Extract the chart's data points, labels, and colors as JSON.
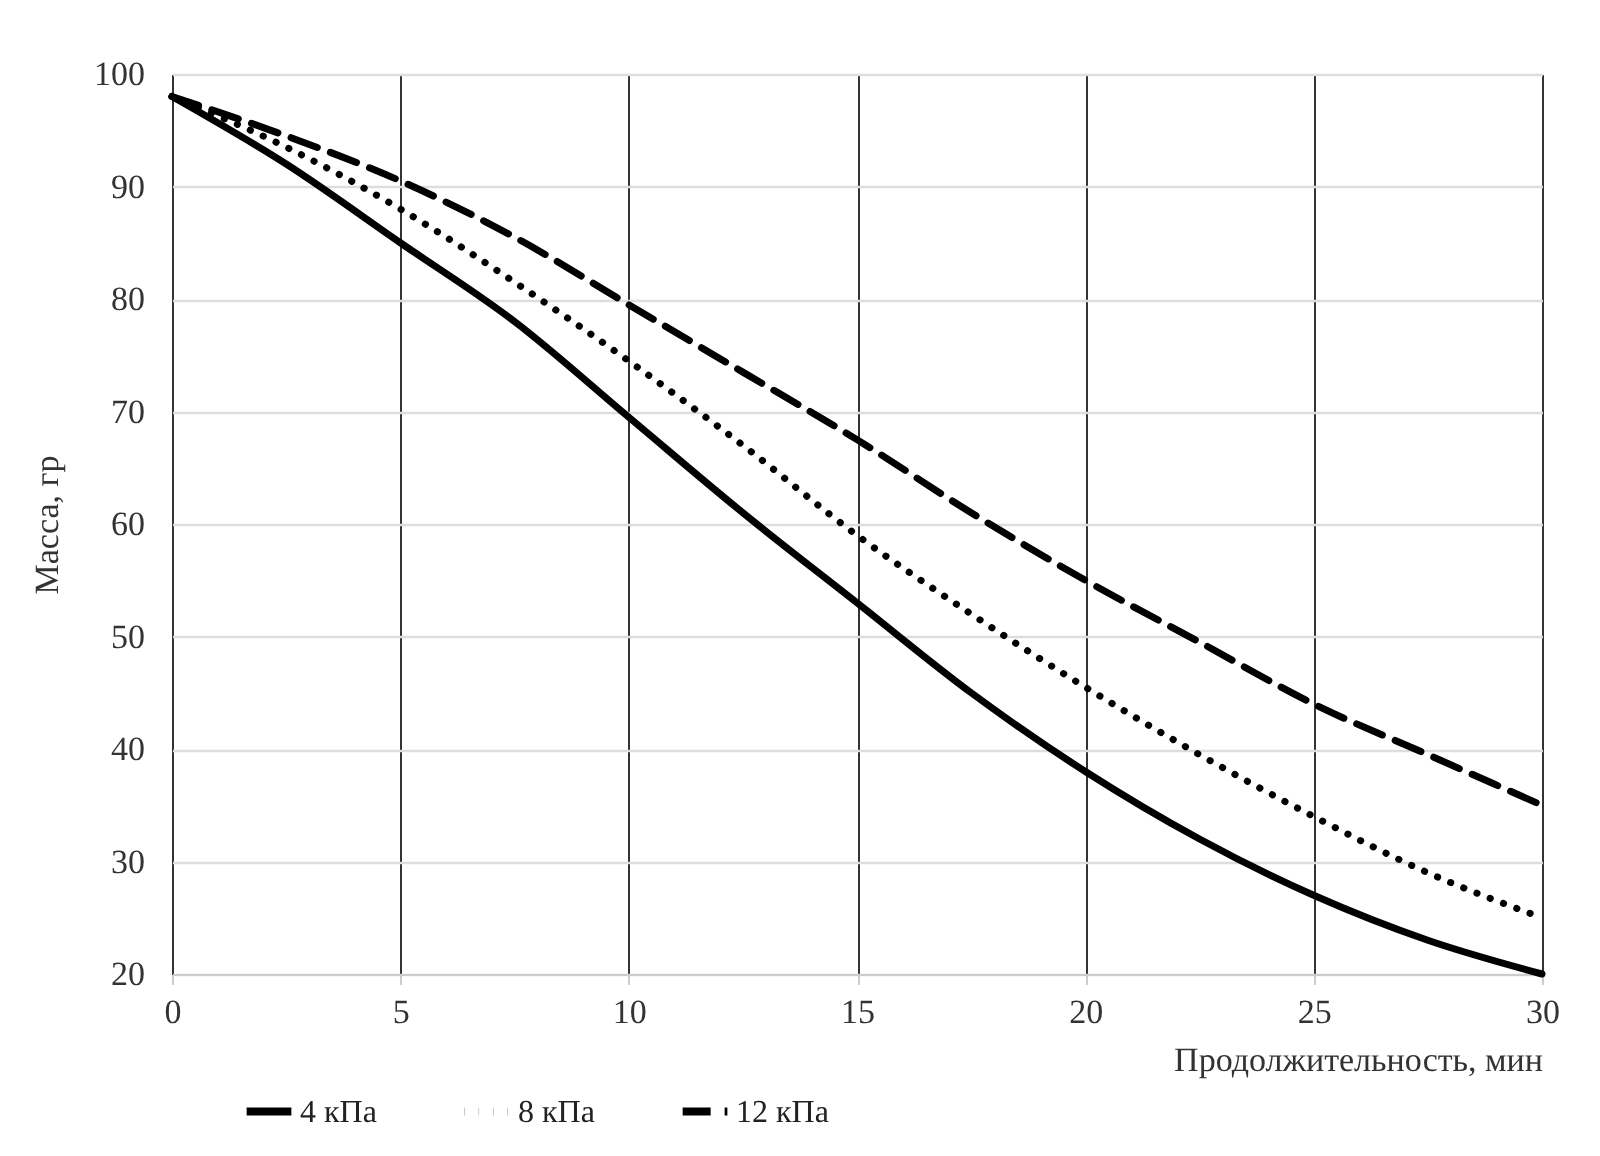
{
  "chart_data": {
    "type": "line",
    "xlabel": "Продолжительность, мин",
    "ylabel": "Масса, гр",
    "x": [
      0,
      2.5,
      5,
      7.5,
      10,
      12.5,
      15,
      17.5,
      20,
      22.5,
      25,
      27.5,
      30
    ],
    "series": [
      {
        "name": "4 кПа",
        "color": "#000000",
        "line_style": "solid",
        "values": [
          98,
          92,
          85,
          78,
          69.5,
          61,
          53,
          45,
          38,
          32,
          27,
          23,
          20
        ]
      },
      {
        "name": "8 кПа",
        "color": "#000000",
        "line_style": "dotted",
        "values": [
          98,
          93.5,
          88,
          81.5,
          74.5,
          67,
          59,
          52,
          45.5,
          39.5,
          34,
          29,
          25
        ]
      },
      {
        "name": "12 кПа",
        "color": "#000000",
        "line_style": "dashed",
        "values": [
          98,
          94.5,
          90.5,
          85.5,
          79.5,
          73.5,
          67.5,
          61,
          55,
          49.5,
          44,
          39.5,
          35
        ]
      }
    ],
    "xlim": [
      0,
      30
    ],
    "xticks": [
      0,
      5,
      10,
      15,
      20,
      25,
      30
    ],
    "ylim": [
      20,
      100
    ],
    "yticks": [
      20,
      30,
      40,
      50,
      60,
      70,
      80,
      90,
      100
    ],
    "grid": true,
    "legend": "bottom",
    "marker": "none"
  }
}
